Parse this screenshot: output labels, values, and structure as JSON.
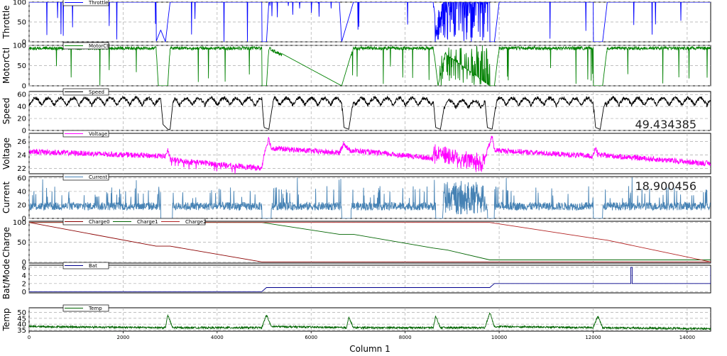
{
  "chart_data": {
    "type": "line",
    "xlabel": "Column 1",
    "xlim": [
      0,
      14500
    ],
    "xticks": [
      0,
      2000,
      4000,
      6000,
      8000,
      10000,
      12000,
      14000
    ],
    "grid": true,
    "panels": [
      {
        "ylabel": "Throttle",
        "ylim": [
          0,
          100
        ],
        "yticks": [
          0,
          50,
          100
        ],
        "legend": [
          "Throttle"
        ],
        "series": [
          {
            "name": "Throttle",
            "color": "#0000ff",
            "kind": "throttle",
            "values": [
              [
                0,
                100
              ],
              [
                600,
                100
              ],
              [
                600,
                0
              ],
              [
                610,
                100
              ],
              [
                1700,
                100
              ],
              [
                1700,
                0
              ],
              [
                1710,
                100
              ],
              [
                2700,
                100
              ],
              [
                2700,
                0
              ],
              [
                2800,
                30
              ],
              [
                2900,
                0
              ],
              [
                3000,
                100
              ],
              [
                3600,
                100
              ],
              [
                4950,
                100
              ],
              [
                4950,
                0
              ],
              [
                5050,
                0
              ],
              [
                5100,
                100
              ],
              [
                6600,
                100
              ],
              [
                6650,
                0
              ],
              [
                6800,
                60
              ],
              [
                6900,
                100
              ],
              [
                8600,
                100
              ],
              [
                8700,
                0
              ],
              [
                8800,
                100
              ],
              [
                9800,
                100
              ],
              [
                9800,
                0
              ],
              [
                9900,
                0
              ],
              [
                10000,
                100
              ],
              [
                12000,
                100
              ],
              [
                12000,
                0
              ],
              [
                12200,
                0
              ],
              [
                12300,
                100
              ],
              [
                14500,
                100
              ],
              [
                14500,
                0
              ]
            ]
          }
        ]
      },
      {
        "ylabel": "MotorCtl",
        "ylim": [
          0,
          100
        ],
        "yticks": [
          0,
          50,
          100
        ],
        "legend": [
          "MotorCtl"
        ],
        "series": [
          {
            "name": "MotorCtl",
            "color": "#008000",
            "kind": "motor",
            "values": [
              [
                0,
                97
              ],
              [
                1700,
                97
              ],
              [
                1700,
                0
              ],
              [
                1710,
                97
              ],
              [
                2700,
                97
              ],
              [
                2750,
                0
              ],
              [
                2950,
                0
              ],
              [
                3000,
                97
              ],
              [
                4950,
                97
              ],
              [
                4950,
                0
              ],
              [
                5050,
                0
              ],
              [
                5100,
                97
              ],
              [
                6650,
                0
              ],
              [
                6900,
                97
              ],
              [
                8600,
                97
              ],
              [
                8700,
                0
              ],
              [
                8850,
                80
              ],
              [
                9800,
                0
              ],
              [
                9900,
                0
              ],
              [
                10000,
                97
              ],
              [
                12000,
                97
              ],
              [
                12000,
                0
              ],
              [
                12200,
                0
              ],
              [
                12300,
                97
              ],
              [
                14500,
                97
              ],
              [
                14500,
                0
              ]
            ]
          }
        ]
      },
      {
        "ylabel": "Speed",
        "ylim": [
          0,
          65
        ],
        "yticks": [
          0,
          20,
          40,
          60
        ],
        "legend": [
          "Speed"
        ],
        "readout": "49.434385",
        "series": [
          {
            "name": "Speed",
            "color": "#000000",
            "kind": "speed",
            "values": [
              [
                0,
                52
              ],
              [
                2800,
                52
              ],
              [
                2850,
                10
              ],
              [
                2950,
                2
              ],
              [
                3000,
                2
              ],
              [
                3050,
                40
              ],
              [
                3100,
                52
              ],
              [
                4950,
                52
              ],
              [
                5000,
                5
              ],
              [
                5100,
                2
              ],
              [
                5200,
                52
              ],
              [
                6650,
                52
              ],
              [
                6700,
                5
              ],
              [
                6800,
                2
              ],
              [
                6900,
                52
              ],
              [
                8600,
                52
              ],
              [
                8650,
                5
              ],
              [
                8750,
                2
              ],
              [
                8850,
                48
              ],
              [
                9700,
                48
              ],
              [
                9750,
                5
              ],
              [
                9850,
                2
              ],
              [
                9950,
                52
              ],
              [
                12000,
                52
              ],
              [
                12050,
                5
              ],
              [
                12150,
                2
              ],
              [
                12250,
                52
              ],
              [
                14500,
                52
              ],
              [
                14500,
                20
              ]
            ]
          }
        ]
      },
      {
        "ylabel": "Voltage",
        "ylim": [
          21.2,
          27.2
        ],
        "yticks": [
          22,
          24,
          26
        ],
        "legend": [
          "Voltage"
        ],
        "series": [
          {
            "name": "Voltage",
            "color": "#ff00ff",
            "kind": "voltage",
            "values": [
              [
                0,
                24.5
              ],
              [
                2900,
                23.8
              ],
              [
                2950,
                24.8
              ],
              [
                3000,
                23.3
              ],
              [
                4950,
                22.0
              ],
              [
                5000,
                24.2
              ],
              [
                5100,
                26.5
              ],
              [
                5150,
                25.0
              ],
              [
                6600,
                24.3
              ],
              [
                6700,
                25.8
              ],
              [
                6800,
                24.7
              ],
              [
                8600,
                23.5
              ],
              [
                8650,
                24.5
              ],
              [
                9650,
                22.5
              ],
              [
                9850,
                26.8
              ],
              [
                9900,
                24.7
              ],
              [
                12000,
                23.8
              ],
              [
                12050,
                25.2
              ],
              [
                12100,
                24.0
              ],
              [
                14500,
                22.7
              ]
            ]
          }
        ]
      },
      {
        "ylabel": "Current",
        "ylim": [
          0,
          62
        ],
        "yticks": [
          0,
          20,
          40,
          60
        ],
        "legend": [
          "Current"
        ],
        "readout": "18.900456",
        "series": [
          {
            "name": "Current",
            "color": "#4682b4",
            "kind": "current",
            "values": [
              [
                0,
                18
              ],
              [
                14500,
                18
              ]
            ]
          }
        ]
      },
      {
        "ylabel": "Charge",
        "ylim": [
          -3,
          103
        ],
        "yticks": [
          0,
          50,
          100
        ],
        "legend": [
          "Charge0",
          "Charge1",
          "Charge2"
        ],
        "series": [
          {
            "name": "Charge0",
            "color": "#8b0000",
            "kind": "plain",
            "values": [
              [
                0,
                100
              ],
              [
                2700,
                40
              ],
              [
                3000,
                40
              ],
              [
                4950,
                0
              ],
              [
                14500,
                0
              ]
            ]
          },
          {
            "name": "Charge1",
            "color": "#006400",
            "kind": "plain",
            "values": [
              [
                0,
                100
              ],
              [
                4950,
                100
              ],
              [
                6600,
                70
              ],
              [
                6900,
                70
              ],
              [
                8600,
                35
              ],
              [
                8900,
                30
              ],
              [
                9800,
                5
              ],
              [
                14500,
                5
              ]
            ]
          },
          {
            "name": "Charge2",
            "color": "#b22222",
            "kind": "plain",
            "values": [
              [
                0,
                100
              ],
              [
                9800,
                100
              ],
              [
                12000,
                60
              ],
              [
                12300,
                55
              ],
              [
                14500,
                0
              ]
            ]
          }
        ]
      },
      {
        "ylabel": "Bat/Mode",
        "ylim": [
          -0.3,
          6.5
        ],
        "yticks": [
          0,
          2,
          4,
          6
        ],
        "legend": [
          "Bat"
        ],
        "series": [
          {
            "name": "Bat",
            "color": "#00008b",
            "kind": "plain",
            "values": [
              [
                0,
                0
              ],
              [
                4950,
                0
              ],
              [
                5050,
                1
              ],
              [
                9800,
                1
              ],
              [
                9900,
                2
              ],
              [
                12800,
                2
              ],
              [
                12800,
                6
              ],
              [
                12830,
                6
              ],
              [
                12830,
                2
              ],
              [
                14500,
                2
              ],
              [
                14500,
                6
              ]
            ]
          }
        ]
      },
      {
        "ylabel": "Temp",
        "ylim": [
          34,
          54
        ],
        "yticks": [
          35,
          40,
          45,
          50
        ],
        "legend": [
          "Temp"
        ],
        "series": [
          {
            "name": "Temp",
            "color": "#006400",
            "kind": "temp",
            "values": [
              [
                0,
                38
              ],
              [
                2900,
                37
              ],
              [
                2950,
                48
              ],
              [
                3050,
                37
              ],
              [
                4950,
                37
              ],
              [
                5050,
                48
              ],
              [
                5150,
                38
              ],
              [
                6750,
                37
              ],
              [
                6800,
                46
              ],
              [
                6900,
                37
              ],
              [
                8600,
                37
              ],
              [
                8650,
                47
              ],
              [
                8750,
                37
              ],
              [
                9700,
                37
              ],
              [
                9800,
                50
              ],
              [
                9900,
                38
              ],
              [
                12000,
                37
              ],
              [
                12100,
                47
              ],
              [
                12200,
                37
              ],
              [
                14500,
                36
              ]
            ]
          }
        ]
      }
    ]
  }
}
